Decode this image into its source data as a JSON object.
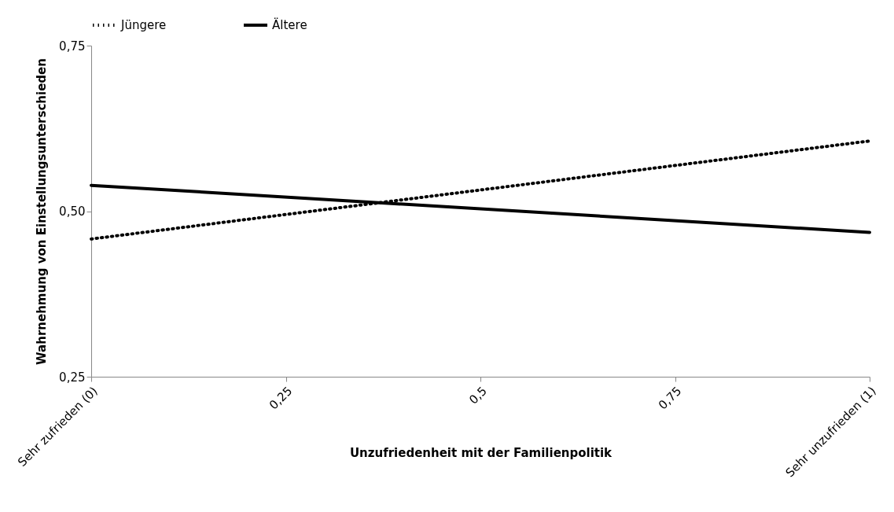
{
  "chart_data": {
    "type": "line",
    "xlabel": "Unzufriedenheit mit der Familienpolitik",
    "ylabel": "Wahrnehmung von Einstellungsunterschieden",
    "x": [
      0,
      1
    ],
    "series": [
      {
        "name": "Jüngere",
        "color": "#000000",
        "line_style": "dotted",
        "values": [
          0.458,
          0.606
        ]
      },
      {
        "name": "Ältere",
        "color": "#000000",
        "line_style": "solid",
        "values": [
          0.539,
          0.468
        ]
      }
    ],
    "xlim": [
      0,
      1
    ],
    "xticks": [
      {
        "value": 0,
        "label": "Sehr zufrieden (0)"
      },
      {
        "value": 0.25,
        "label": "0,25"
      },
      {
        "value": 0.5,
        "label": "0,5"
      },
      {
        "value": 0.75,
        "label": "0,75"
      },
      {
        "value": 1,
        "label": "Sehr unzufrieden (1)"
      }
    ],
    "ylim": [
      0.25,
      0.75
    ],
    "yticks": [
      {
        "value": 0.25,
        "label": "0,25"
      },
      {
        "value": 0.5,
        "label": "0,50"
      },
      {
        "value": 0.75,
        "label": "0,75"
      }
    ],
    "legend": "top"
  }
}
